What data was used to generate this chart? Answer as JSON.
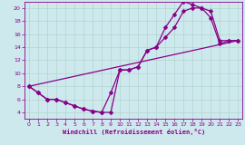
{
  "bg_color": "#cee9ee",
  "grid_color": "#b0d4cc",
  "line_color": "#880088",
  "xlim": [
    -0.5,
    23.5
  ],
  "ylim": [
    3,
    21
  ],
  "yticks": [
    4,
    6,
    8,
    10,
    12,
    14,
    16,
    18,
    20
  ],
  "xticks": [
    0,
    1,
    2,
    3,
    4,
    5,
    6,
    7,
    8,
    9,
    10,
    11,
    12,
    13,
    14,
    15,
    16,
    17,
    18,
    19,
    20,
    21,
    22,
    23
  ],
  "xlabel": "Windchill (Refroidissement éolien,°C)",
  "line1_x": [
    0,
    1,
    2,
    3,
    4,
    5,
    6,
    7,
    8,
    9,
    10,
    11,
    12,
    13,
    14,
    15,
    16,
    17,
    18,
    19,
    20,
    21,
    22,
    23
  ],
  "line1_y": [
    8.0,
    7.0,
    6.0,
    6.0,
    5.5,
    5.0,
    4.5,
    4.2,
    4.0,
    7.0,
    10.5,
    10.5,
    11.0,
    13.5,
    14.0,
    17.0,
    19.0,
    21.0,
    20.5,
    20.0,
    19.5,
    15.0,
    15.0,
    15.0
  ],
  "line2_x": [
    0,
    1,
    2,
    3,
    4,
    5,
    6,
    7,
    8,
    9,
    10,
    11,
    12,
    13,
    14,
    15,
    16,
    17,
    18,
    19,
    20,
    21,
    22,
    23
  ],
  "line2_y": [
    8.0,
    7.0,
    6.0,
    6.0,
    5.5,
    5.0,
    4.5,
    4.2,
    4.0,
    4.0,
    10.5,
    10.5,
    11.0,
    13.5,
    14.0,
    15.5,
    17.0,
    19.5,
    20.0,
    20.0,
    18.5,
    14.5,
    15.0,
    15.0
  ],
  "line3_x": [
    0,
    23
  ],
  "line3_y": [
    8.0,
    15.0
  ],
  "markersize": 2.5,
  "linewidth": 0.9
}
